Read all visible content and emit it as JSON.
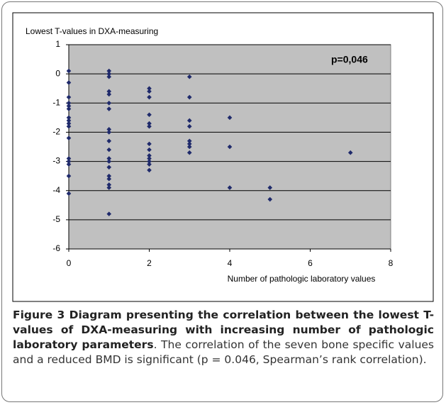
{
  "chart_data": {
    "type": "scatter",
    "y_axis_title": "Lowest T-values in DXA-measuring",
    "x_axis_title": "Number of pathologic laboratory values",
    "annotation": "p=0,046",
    "color": "#1f2a6b",
    "x": [
      0,
      0,
      0,
      0,
      0,
      0,
      0,
      0,
      0,
      0,
      0,
      0,
      0,
      0,
      0,
      0,
      1,
      1,
      1,
      1,
      1,
      1,
      1,
      1,
      1,
      1,
      1,
      1,
      1,
      1,
      1,
      1,
      1,
      1,
      1,
      2,
      2,
      2,
      2,
      2,
      2,
      2,
      2,
      2,
      2,
      2,
      2,
      2,
      3,
      3,
      3,
      3,
      3,
      3,
      3,
      3,
      4,
      4,
      4,
      5,
      5,
      7
    ],
    "values": [
      0.1,
      -0.3,
      -0.8,
      -1.0,
      -1.1,
      -1.2,
      -1.5,
      -1.6,
      -1.7,
      -1.8,
      -2.2,
      -2.9,
      -3.0,
      -3.1,
      -3.5,
      -4.1,
      0.1,
      0.0,
      -0.1,
      -0.6,
      -0.7,
      -1.0,
      -1.2,
      -1.9,
      -2.0,
      -2.3,
      -2.6,
      -2.9,
      -3.0,
      -3.2,
      -3.5,
      -3.6,
      -3.8,
      -3.9,
      -4.8,
      -0.5,
      -0.6,
      -0.8,
      -1.4,
      -1.7,
      -1.8,
      -2.4,
      -2.6,
      -2.8,
      -2.9,
      -3.0,
      -3.1,
      -3.3,
      -0.1,
      -0.8,
      -1.6,
      -1.8,
      -2.3,
      -2.4,
      -2.5,
      -2.7,
      -1.5,
      -2.5,
      -3.9,
      -3.9,
      -4.3,
      -2.7
    ],
    "xlim": [
      0,
      8
    ],
    "xticks": [
      0,
      2,
      4,
      6,
      8
    ],
    "ylim": [
      -6,
      1
    ],
    "yticks": [
      1,
      0,
      -1,
      -2,
      -3,
      -4,
      -5,
      -6
    ],
    "grid": true
  },
  "caption": {
    "title": "Figure 3 Diagram presenting the correlation between the lowest T-values of DXA-measuring with increasing number of pathologic laboratory parameters",
    "text": ". The correlation of the seven bone specific values and a reduced BMD is significant (p = 0.046, Spearman’s rank correlation)."
  }
}
